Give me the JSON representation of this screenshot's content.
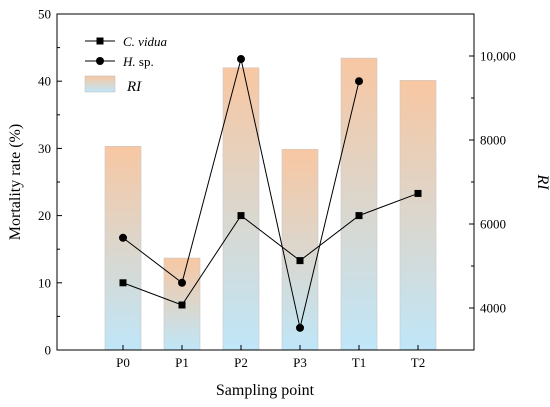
{
  "chart_data": {
    "type": "bar+line",
    "categories": [
      "P0",
      "P1",
      "P2",
      "P3",
      "T1",
      "T2"
    ],
    "bars": {
      "name": "RI",
      "axis": "right",
      "values": [
        7850,
        5190,
        9720,
        7780,
        9950,
        9420
      ],
      "gradient_top": "#f8c7a2",
      "gradient_bottom": "#bfe6f8"
    },
    "series": [
      {
        "name": "C. vidua",
        "axis": "left",
        "marker": "square",
        "values": [
          10.0,
          6.7,
          20.0,
          13.3,
          20.0,
          23.3
        ]
      },
      {
        "name": "H. sp.",
        "axis": "left",
        "marker": "circle",
        "values": [
          16.7,
          10.0,
          43.3,
          3.3,
          40.0,
          null
        ]
      }
    ],
    "legend": {
      "cvidua_name": "C. vidua",
      "cvidua_prefix": "C.",
      "cvidua_suffix": " vidua",
      "hsp_name": "H. sp.",
      "hsp_prefix": "H.",
      "hsp_suffix": " sp.",
      "ri_name": "RI",
      "placement": "top-left"
    },
    "xlabel": "Sampling point",
    "ylabel_left": "Mortality rate (%)",
    "ylabel_right": "RI",
    "ylim_left": [
      0,
      50
    ],
    "yticks_left": [
      0,
      10,
      20,
      30,
      40,
      50
    ],
    "ylim_right": [
      3000,
      11000
    ],
    "yticks_right": [
      "4000",
      "6000",
      "8000",
      "10,000"
    ],
    "grid": false
  }
}
